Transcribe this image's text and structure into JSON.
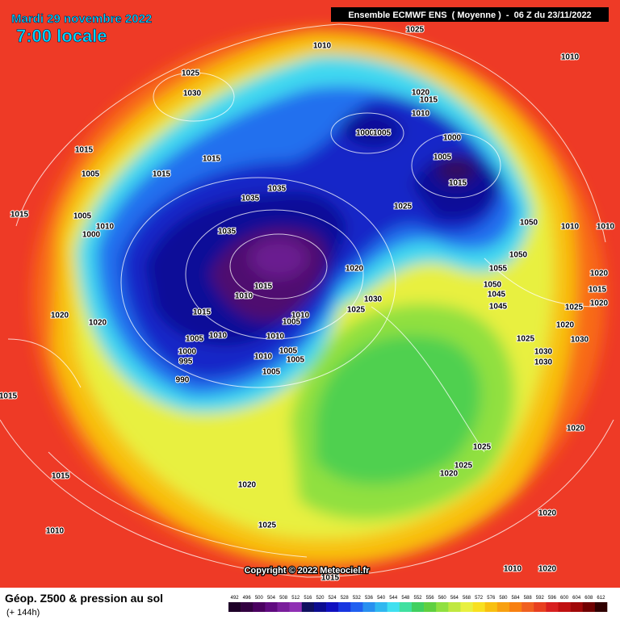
{
  "header": {
    "date": "Mardi 29 novembre 2022",
    "time": "7:00 locale",
    "model": "Ensemble ECMWF ENS  ( Moyenne )  -  06 Z du 23/11/2022"
  },
  "footer": {
    "title": "Géop. Z500 & pression au sol",
    "subtitle": "(+ 144h)",
    "copyright": "Copyright © 2022 Meteociel.fr"
  },
  "isobar_labels": [
    1025,
    1010,
    1010,
    1025,
    1030,
    1020,
    1015,
    1010,
    1000,
    1005,
    1000,
    1015,
    1005,
    1015,
    1005,
    1015,
    1015,
    1035,
    1035,
    1025,
    1015,
    1005,
    1010,
    1050,
    1010,
    1010,
    1035,
    1000,
    1050,
    1020,
    1055,
    1050,
    1015,
    1010,
    1030,
    1025,
    1015,
    1010,
    1005,
    1020,
    1020,
    1010,
    1005,
    1010,
    1000,
    1005,
    1010,
    995,
    1005,
    1005,
    990,
    1015,
    1025,
    1025,
    1020,
    1015,
    1020,
    1025,
    1010,
    1020,
    1010,
    1020,
    1015,
    1020,
    1015,
    1020,
    1025,
    1020,
    1030,
    1030,
    1030,
    1025,
    1045,
    1045,
    1020
  ],
  "legend": {
    "values": [
      492,
      496,
      500,
      504,
      508,
      512,
      516,
      520,
      524,
      528,
      532,
      536,
      540,
      544,
      548,
      552,
      556,
      560,
      564,
      568,
      572,
      576,
      580,
      584,
      588,
      592,
      596,
      600,
      604,
      608,
      612
    ],
    "colors": [
      "#1e0028",
      "#320040",
      "#4a0060",
      "#600a80",
      "#7a1e9c",
      "#9030b4",
      "#101060",
      "#0c0c90",
      "#1010c0",
      "#1836e0",
      "#2060f0",
      "#2890f0",
      "#30b8f0",
      "#40e0f0",
      "#40e0a0",
      "#40d060",
      "#60d040",
      "#90e040",
      "#c0e840",
      "#e8f040",
      "#f8e020",
      "#f8c010",
      "#f8a010",
      "#f88010",
      "#f06020",
      "#e84020",
      "#d82020",
      "#c01010",
      "#a00808",
      "#700000",
      "#300000"
    ]
  }
}
